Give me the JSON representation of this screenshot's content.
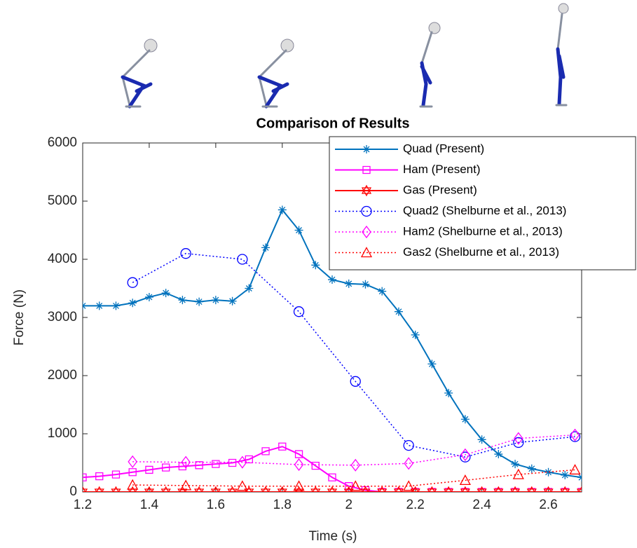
{
  "chart_data": {
    "type": "line",
    "title": "Comparison of Results",
    "x_label": "Time (s)",
    "y_label": "Force (N)",
    "xlim": [
      1.2,
      2.7
    ],
    "ylim": [
      0,
      6000
    ],
    "xticks": [
      1.2,
      1.4,
      1.6,
      1.8,
      2,
      2.2,
      2.4,
      2.6
    ],
    "yticks": [
      0,
      1000,
      2000,
      3000,
      4000,
      5000,
      6000
    ],
    "x": [
      1.2,
      1.25,
      1.3,
      1.35,
      1.4,
      1.45,
      1.5,
      1.55,
      1.6,
      1.65,
      1.7,
      1.75,
      1.8,
      1.85,
      1.9,
      1.95,
      2.0,
      2.05,
      2.1,
      2.15,
      2.2,
      2.25,
      2.3,
      2.35,
      2.4,
      2.45,
      2.5,
      2.55,
      2.6,
      2.65,
      2.7
    ],
    "series": [
      {
        "name": "Quad (Present)",
        "color": "#0072bd",
        "marker": "asterisk",
        "linestyle": "solid",
        "values": [
          3200,
          3200,
          3200,
          3250,
          3350,
          3420,
          3300,
          3270,
          3300,
          3280,
          3500,
          4200,
          4850,
          4500,
          3900,
          3650,
          3580,
          3570,
          3450,
          3100,
          2700,
          2200,
          1700,
          1250,
          900,
          650,
          480,
          400,
          340,
          290,
          250
        ]
      },
      {
        "name": "Ham (Present)",
        "color": "#ff00ff",
        "marker": "square",
        "linestyle": "solid",
        "values": [
          250,
          270,
          300,
          340,
          380,
          420,
          440,
          460,
          480,
          500,
          560,
          700,
          780,
          650,
          450,
          250,
          100,
          30,
          0,
          0,
          0,
          0,
          0,
          0,
          0,
          0,
          0,
          0,
          0,
          0,
          0
        ]
      },
      {
        "name": "Gas (Present)",
        "color": "#ff0000",
        "marker": "hexagram",
        "linestyle": "solid",
        "values": [
          0,
          0,
          0,
          0,
          0,
          0,
          0,
          0,
          0,
          0,
          0,
          0,
          0,
          0,
          0,
          0,
          0,
          0,
          0,
          0,
          0,
          0,
          0,
          0,
          0,
          0,
          0,
          0,
          0,
          0,
          0
        ]
      },
      {
        "name": "Quad2 (Shelburne et al., 2013)",
        "color": "#0000ff",
        "marker": "circle",
        "linestyle": "dotted",
        "x": [
          1.35,
          1.51,
          1.68,
          1.85,
          2.02,
          2.18,
          2.35,
          2.51,
          2.68
        ],
        "values": [
          3600,
          4100,
          4000,
          3100,
          1900,
          800,
          600,
          850,
          950
        ]
      },
      {
        "name": "Ham2 (Shelburne et al., 2013)",
        "color": "#ff00ff",
        "marker": "diamond",
        "linestyle": "dotted",
        "x": [
          1.35,
          1.51,
          1.68,
          1.85,
          2.02,
          2.18,
          2.35,
          2.51,
          2.68
        ],
        "values": [
          520,
          510,
          510,
          470,
          460,
          490,
          640,
          920,
          980
        ]
      },
      {
        "name": "Gas2 (Shelburne et al., 2013)",
        "color": "#ff0000",
        "marker": "triangle",
        "linestyle": "dotted",
        "x": [
          1.35,
          1.51,
          1.68,
          1.85,
          2.02,
          2.18,
          2.35,
          2.51,
          2.68
        ],
        "values": [
          120,
          110,
          100,
          100,
          100,
          100,
          200,
          300,
          380
        ]
      }
    ]
  }
}
